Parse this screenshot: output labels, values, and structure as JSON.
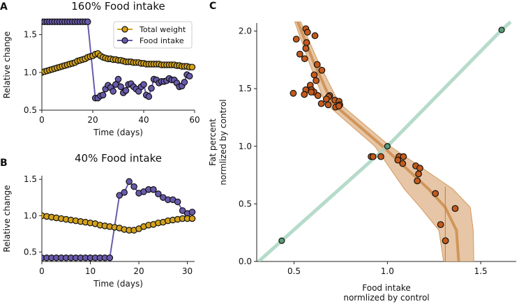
{
  "chart_data": [
    {
      "id": "A",
      "panel_label": "A",
      "type": "line",
      "title": "160% Food intake",
      "xlabel": "Time (days)",
      "ylabel": "Relative change",
      "xlim": [
        0,
        60
      ],
      "ylim": [
        0.5,
        1.7
      ],
      "xticks": [
        0,
        20,
        40,
        60
      ],
      "yticks": [
        0.5,
        1.0,
        1.5
      ],
      "ytick_labels": [
        "0.5",
        "1.0",
        "1.5"
      ],
      "legend": {
        "placement": "top-right",
        "entries": [
          "Total weight",
          "Food intake"
        ]
      },
      "series": [
        {
          "name": "Total weight",
          "color": "#d4a21a",
          "x": [
            0,
            1,
            2,
            3,
            4,
            5,
            6,
            7,
            8,
            9,
            10,
            11,
            12,
            13,
            14,
            15,
            16,
            17,
            18,
            19,
            20,
            21,
            22,
            23,
            24,
            25,
            26,
            27,
            28,
            29,
            30,
            31,
            32,
            33,
            34,
            35,
            36,
            37,
            38,
            39,
            40,
            41,
            42,
            43,
            44,
            45,
            46,
            47,
            48,
            49,
            50,
            51,
            52,
            53,
            54,
            55,
            56,
            57,
            58,
            59
          ],
          "y": [
            1.0,
            1.01,
            1.02,
            1.03,
            1.04,
            1.05,
            1.06,
            1.07,
            1.08,
            1.09,
            1.1,
            1.11,
            1.12,
            1.13,
            1.15,
            1.16,
            1.17,
            1.18,
            1.2,
            1.21,
            1.22,
            1.24,
            1.25,
            1.22,
            1.2,
            1.19,
            1.18,
            1.18,
            1.17,
            1.17,
            1.16,
            1.16,
            1.15,
            1.14,
            1.14,
            1.14,
            1.13,
            1.13,
            1.13,
            1.12,
            1.12,
            1.11,
            1.11,
            1.11,
            1.11,
            1.11,
            1.11,
            1.1,
            1.1,
            1.1,
            1.1,
            1.1,
            1.1,
            1.09,
            1.09,
            1.08,
            1.08,
            1.08,
            1.07,
            1.07
          ]
        },
        {
          "name": "Food intake",
          "color": "#6a5aab",
          "x": [
            0,
            1,
            2,
            3,
            4,
            5,
            6,
            7,
            8,
            9,
            10,
            11,
            12,
            13,
            14,
            15,
            16,
            17,
            18,
            21,
            22,
            23,
            24,
            25,
            26,
            27,
            28,
            29,
            30,
            31,
            32,
            33,
            34,
            35,
            36,
            37,
            38,
            39,
            40,
            41,
            42,
            43,
            44,
            45,
            46,
            47,
            48,
            49,
            50,
            51,
            52,
            53,
            54,
            55,
            56,
            57,
            58
          ],
          "y": [
            1.67,
            1.67,
            1.67,
            1.67,
            1.67,
            1.67,
            1.67,
            1.67,
            1.67,
            1.67,
            1.67,
            1.67,
            1.67,
            1.67,
            1.67,
            1.67,
            1.67,
            1.67,
            1.67,
            0.66,
            0.66,
            0.69,
            0.7,
            0.78,
            0.83,
            0.8,
            0.75,
            0.84,
            0.91,
            0.81,
            0.73,
            0.76,
            0.84,
            0.85,
            0.81,
            0.78,
            0.75,
            0.81,
            0.84,
            0.7,
            0.68,
            0.79,
            0.91,
            0.9,
            0.86,
            0.88,
            0.88,
            0.89,
            0.92,
            0.9,
            0.9,
            0.86,
            0.81,
            0.82,
            0.87,
            0.97,
            0.95
          ]
        }
      ]
    },
    {
      "id": "B",
      "panel_label": "B",
      "type": "line",
      "title": "40% Food intake",
      "xlabel": "Time (days)",
      "ylabel": "Relative change",
      "xlim": [
        0,
        31.5
      ],
      "ylim": [
        0.37,
        1.55
      ],
      "xticks": [
        0,
        10,
        20,
        30
      ],
      "yticks": [
        0.5,
        1.0,
        1.5
      ],
      "ytick_labels": [
        "0.5",
        "1.0",
        "1.5"
      ],
      "series": [
        {
          "name": "Total weight",
          "color": "#d4a21a",
          "x": [
            0,
            1,
            2,
            3,
            4,
            5,
            6,
            7,
            8,
            9,
            10,
            11,
            12,
            13,
            14,
            15,
            16,
            17,
            18,
            19,
            20,
            21,
            22,
            23,
            24,
            25,
            26,
            27,
            28,
            29,
            30,
            31
          ],
          "y": [
            1.0,
            0.99,
            0.98,
            0.97,
            0.96,
            0.95,
            0.94,
            0.93,
            0.92,
            0.91,
            0.9,
            0.89,
            0.87,
            0.86,
            0.85,
            0.84,
            0.83,
            0.81,
            0.8,
            0.8,
            0.82,
            0.85,
            0.87,
            0.88,
            0.9,
            0.91,
            0.93,
            0.94,
            0.95,
            0.96,
            0.96,
            0.96
          ]
        },
        {
          "name": "Food intake",
          "color": "#6a5aab",
          "x": [
            0,
            1,
            2,
            3,
            4,
            5,
            6,
            7,
            8,
            9,
            10,
            11,
            12,
            13,
            14,
            16,
            17,
            18,
            19,
            20,
            21,
            22,
            23,
            24,
            25,
            26,
            27,
            28,
            29,
            30,
            31
          ],
          "y": [
            0.42,
            0.42,
            0.42,
            0.42,
            0.42,
            0.42,
            0.42,
            0.42,
            0.42,
            0.42,
            0.42,
            0.42,
            0.42,
            0.42,
            0.42,
            1.28,
            1.32,
            1.47,
            1.4,
            1.31,
            1.33,
            1.36,
            1.36,
            1.3,
            1.25,
            1.22,
            1.22,
            1.19,
            1.07,
            1.03,
            1.05
          ]
        }
      ]
    },
    {
      "id": "C",
      "panel_label": "C",
      "type": "scatter",
      "title": "",
      "xlabel": "Food intake\nnormlized by control",
      "xlabel_lines": [
        "Food intake",
        "normlized by control"
      ],
      "ylabel_lines": [
        "Fat percent",
        "normlized by control"
      ],
      "xlim": [
        0.3,
        1.69
      ],
      "ylim": [
        0,
        2.07
      ],
      "xticks": [
        0.5,
        1.0,
        1.5
      ],
      "xtick_labels": [
        "0.5",
        "1.0",
        "1.5"
      ],
      "yticks": [
        0,
        0.5,
        1.0,
        1.5,
        2.0
      ],
      "ytick_labels": [
        "0.0",
        "0.5",
        "1.0",
        "1.5",
        "2.0"
      ],
      "data_points": {
        "color": "#c45a1c",
        "x": [
          0.563,
          0.572,
          0.512,
          0.612,
          0.567,
          0.563,
          0.531,
          0.557,
          0.624,
          0.649,
          0.608,
          0.618,
          0.587,
          0.563,
          0.594,
          0.607,
          0.496,
          0.555,
          0.592,
          0.628,
          0.691,
          0.685,
          0.673,
          0.719,
          0.741,
          0.646,
          0.683,
          0.745,
          0.723,
          0.74,
          0.913,
          0.923,
          0.965,
          1.062,
          1.086,
          1.056,
          1.082,
          1.152,
          1.174,
          1.167,
          1.16,
          1.257,
          1.363,
          1.285,
          1.311
        ],
        "y": [
          2.02,
          1.99,
          1.93,
          1.96,
          1.9,
          1.85,
          1.8,
          1.76,
          1.71,
          1.66,
          1.62,
          1.57,
          1.53,
          1.49,
          1.49,
          1.47,
          1.46,
          1.45,
          1.47,
          1.44,
          1.44,
          1.43,
          1.41,
          1.4,
          1.39,
          1.37,
          1.36,
          1.36,
          1.34,
          1.35,
          0.91,
          0.91,
          0.91,
          0.91,
          0.91,
          0.88,
          0.85,
          0.83,
          0.81,
          0.76,
          0.7,
          0.59,
          0.46,
          0.32,
          0.18
        ]
      },
      "control_points": {
        "color": "#5a9e78",
        "x": [
          0.434,
          1.0,
          1.612
        ],
        "y": [
          0.18,
          1.0,
          2.01
        ]
      },
      "control_line": {
        "color": "#a9d5c1",
        "x": [
          0.31,
          0.434,
          1.0,
          1.612,
          1.66
        ],
        "y": [
          0.0,
          0.18,
          1.0,
          2.01,
          2.08
        ]
      },
      "fit_band": {
        "color": "#dcae80",
        "y": [
          2.08,
          1.75,
          1.375,
          1.0,
          0.63,
          0.47,
          0.27,
          0.0
        ],
        "lower_x": [
          0.504,
          0.575,
          0.667,
          0.933,
          1.09,
          1.176,
          1.276,
          1.301
        ],
        "center_x": [
          0.52,
          0.6,
          0.704,
          0.974,
          1.22,
          1.31,
          1.37,
          1.382
        ],
        "upper_x": [
          0.536,
          0.625,
          0.741,
          1.015,
          1.35,
          1.444,
          1.46,
          1.463
        ]
      },
      "threshold_line": {
        "x": 1.31,
        "y": [
          0.0,
          0.65
        ]
      }
    }
  ]
}
